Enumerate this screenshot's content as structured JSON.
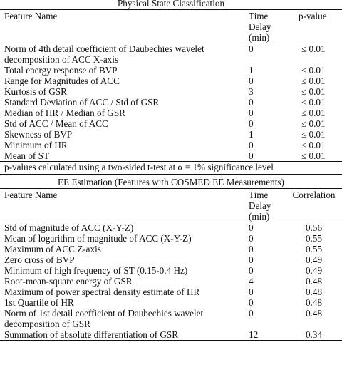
{
  "section1": {
    "title": "Physical State Classification",
    "headers": {
      "feature": "Feature Name",
      "delay": [
        "Time",
        "Delay",
        "(min)"
      ],
      "metric": "p-value"
    },
    "rows": [
      {
        "feature": "Norm of 4th detail coefficient of Daubechies wavelet decomposition of ACC X-axis",
        "delay": "0",
        "value": "≤ 0.01"
      },
      {
        "feature": "Total energy response of BVP",
        "delay": "1",
        "value": "≤ 0.01"
      },
      {
        "feature": "Range for Magnitudes of ACC",
        "delay": "0",
        "value": "≤ 0.01"
      },
      {
        "feature": "Kurtosis of GSR",
        "delay": "3",
        "value": "≤ 0.01"
      },
      {
        "feature": "Standard Deviation of ACC / Std of GSR",
        "delay": "0",
        "value": "≤ 0.01"
      },
      {
        "feature": "Median of HR / Median of GSR",
        "delay": "0",
        "value": "≤ 0.01"
      },
      {
        "feature": "Std of ACC / Mean of ACC",
        "delay": "0",
        "value": "≤ 0.01"
      },
      {
        "feature": "Skewness of BVP",
        "delay": "1",
        "value": "≤ 0.01"
      },
      {
        "feature": "Minimum of HR",
        "delay": "0",
        "value": "≤ 0.01"
      },
      {
        "feature": "Mean of ST",
        "delay": "0",
        "value": "≤ 0.01"
      }
    ],
    "footnote": "p-values calculated using a two-sided t-test at α = 1% significance level"
  },
  "section2": {
    "title": "EE Estimation (Features with COSMED EE Measurements)",
    "headers": {
      "feature": "Feature Name",
      "delay": [
        "Time",
        "Delay",
        "(min)"
      ],
      "metric": "Correlation"
    },
    "rows": [
      {
        "feature": "Std of magnitude of ACC (X-Y-Z)",
        "delay": "0",
        "value": "0.56"
      },
      {
        "feature": "Mean of logarithm of magnitude of ACC (X-Y-Z)",
        "delay": "0",
        "value": "0.55"
      },
      {
        "feature": "Maximum of ACC Z-axis",
        "delay": "0",
        "value": "0.55"
      },
      {
        "feature": "Zero cross of BVP",
        "delay": "0",
        "value": "0.49"
      },
      {
        "feature": "Minimum of high frequency of ST (0.15-0.4 Hz)",
        "delay": "0",
        "value": "0.49"
      },
      {
        "feature": "Root-mean-square energy of GSR",
        "delay": "4",
        "value": "0.48"
      },
      {
        "feature": "Maximum of power spectral density estimate of HR",
        "delay": "0",
        "value": "0.48"
      },
      {
        "feature": "1st Quartile of HR",
        "delay": "0",
        "value": "0.48"
      },
      {
        "feature": "Norm of 1st detail coefficient of Daubechies wavelet decomposition of GSR",
        "delay": "0",
        "value": "0.48"
      },
      {
        "feature": "Summation of absolute differentiation of GSR",
        "delay": "12",
        "value": "0.34"
      }
    ]
  }
}
